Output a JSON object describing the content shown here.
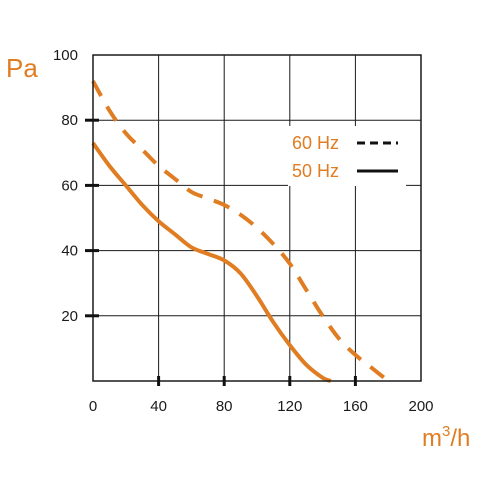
{
  "chart_data": {
    "type": "line",
    "ylabel": "Pa",
    "xlabel_base": "m",
    "xlabel_sup": "3",
    "xlabel_tail": "/h",
    "xlim": [
      0,
      200
    ],
    "ylim": [
      0,
      100
    ],
    "x_ticks": [
      0,
      40,
      80,
      120,
      160,
      200
    ],
    "y_ticks": [
      20,
      40,
      60,
      80,
      100
    ],
    "grid": true,
    "legend_position": "right",
    "colors": {
      "series": "#e07d22",
      "grid": "#1a1a1a",
      "legend_mark": "#111111"
    },
    "series": [
      {
        "name": "60 Hz",
        "style": "dashed",
        "x": [
          0,
          10,
          20,
          30,
          40,
          50,
          60,
          70,
          80,
          90,
          100,
          110,
          120,
          130,
          140,
          150,
          160,
          170,
          180
        ],
        "y": [
          92,
          83,
          76,
          71,
          66,
          62,
          58,
          56,
          54,
          51,
          47,
          42,
          36,
          28,
          20,
          13,
          8,
          4,
          0
        ]
      },
      {
        "name": "50 Hz",
        "style": "solid",
        "x": [
          0,
          10,
          20,
          30,
          40,
          50,
          60,
          70,
          80,
          90,
          100,
          110,
          120,
          130,
          140,
          145
        ],
        "y": [
          73,
          66,
          60,
          54,
          49,
          45,
          41,
          39,
          37,
          33,
          26,
          18,
          11,
          5,
          1,
          0
        ]
      }
    ]
  }
}
